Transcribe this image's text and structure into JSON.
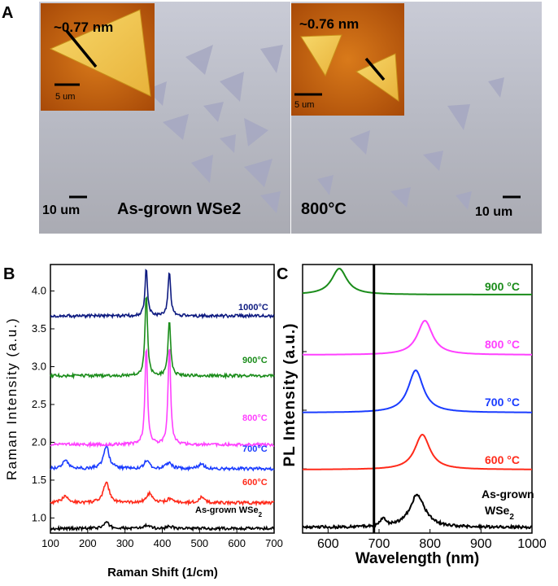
{
  "panel_a": {
    "label": "A",
    "left": {
      "inset_height_label": "~0.77 nm",
      "inset_scale_label": "5 um",
      "scale_label": "10 um",
      "caption": "As-grown WSe2"
    },
    "right": {
      "inset_height_label": "~0.76 nm",
      "inset_scale_label": "5 um",
      "scale_label": "10 um",
      "caption": "800°C"
    }
  },
  "chart_data": [
    {
      "panel": "B",
      "type": "line",
      "title": "",
      "xlabel": "Raman Shift (1/cm)",
      "ylabel": "Raman Intensity (a.u.)",
      "xlim": [
        100,
        700
      ],
      "ylim": [
        0.8,
        4.35
      ],
      "xticks": [
        "100",
        "200",
        "300",
        "400",
        "500",
        "600",
        "700"
      ],
      "yticks": [
        "1.0",
        "1.5",
        "2.0",
        "2.5",
        "3.0",
        "3.5",
        "4.0"
      ],
      "peaks": [
        250,
        357,
        419
      ],
      "series": [
        {
          "name": "As-grown WSe",
          "subscript": "2",
          "color": "#000000",
          "baseline": 0.86,
          "peaks": [
            {
              "x": 250,
              "h": 0.08
            },
            {
              "x": 358,
              "h": 0.04
            },
            {
              "x": 420,
              "h": 0.03
            }
          ]
        },
        {
          "name": "600°C",
          "color": "#ff2a1a",
          "baseline": 1.2,
          "peaks": [
            {
              "x": 140,
              "h": 0.1
            },
            {
              "x": 250,
              "h": 0.28
            },
            {
              "x": 365,
              "h": 0.12
            },
            {
              "x": 420,
              "h": 0.05
            },
            {
              "x": 505,
              "h": 0.07
            }
          ]
        },
        {
          "name": "700°C",
          "color": "#1a3cff",
          "baseline": 1.65,
          "peaks": [
            {
              "x": 140,
              "h": 0.12
            },
            {
              "x": 250,
              "h": 0.3
            },
            {
              "x": 358,
              "h": 0.1
            },
            {
              "x": 418,
              "h": 0.08
            },
            {
              "x": 505,
              "h": 0.06
            }
          ]
        },
        {
          "name": "800°C",
          "color": "#ff40ff",
          "baseline": 1.97,
          "peaks": [
            {
              "x": 357,
              "h": 1.3
            },
            {
              "x": 419,
              "h": 1.32
            }
          ]
        },
        {
          "name": "900°C",
          "color": "#1a8c1a",
          "baseline": 2.88,
          "peaks": [
            {
              "x": 357,
              "h": 1.1
            },
            {
              "x": 419,
              "h": 0.75
            }
          ]
        },
        {
          "name": "1000°C",
          "color": "#0d1a80",
          "baseline": 3.67,
          "peaks": [
            {
              "x": 357,
              "h": 0.63
            },
            {
              "x": 419,
              "h": 0.6
            }
          ]
        }
      ]
    },
    {
      "panel": "C",
      "type": "line",
      "title": "",
      "xlabel": "Wavelength (nm)",
      "ylabel": "PL Intensity (a.u.)",
      "xlim": [
        550,
        1000
      ],
      "xticks": [
        "600",
        "700",
        "800",
        "900",
        "1000"
      ],
      "laser_line_nm": 690,
      "series": [
        {
          "name": "As-grown",
          "name_line2": "WSe",
          "subscript": "2",
          "color": "#000000",
          "peak_nm": 775,
          "offset": 0,
          "height": 1.0
        },
        {
          "name": "600 °C",
          "color": "#ff2a1a",
          "peak_nm": 785,
          "offset": 1,
          "height": 1.1
        },
        {
          "name": "700 °C",
          "color": "#1a3cff",
          "peak_nm": 772,
          "offset": 2,
          "height": 1.3
        },
        {
          "name": "800 °C",
          "color": "#ff40ff",
          "peak_nm": 790,
          "offset": 3,
          "height": 1.1
        },
        {
          "name": "900 °C",
          "color": "#1a8c1a",
          "peak_nm": 622,
          "offset": 4,
          "height": 0.85
        }
      ]
    }
  ]
}
